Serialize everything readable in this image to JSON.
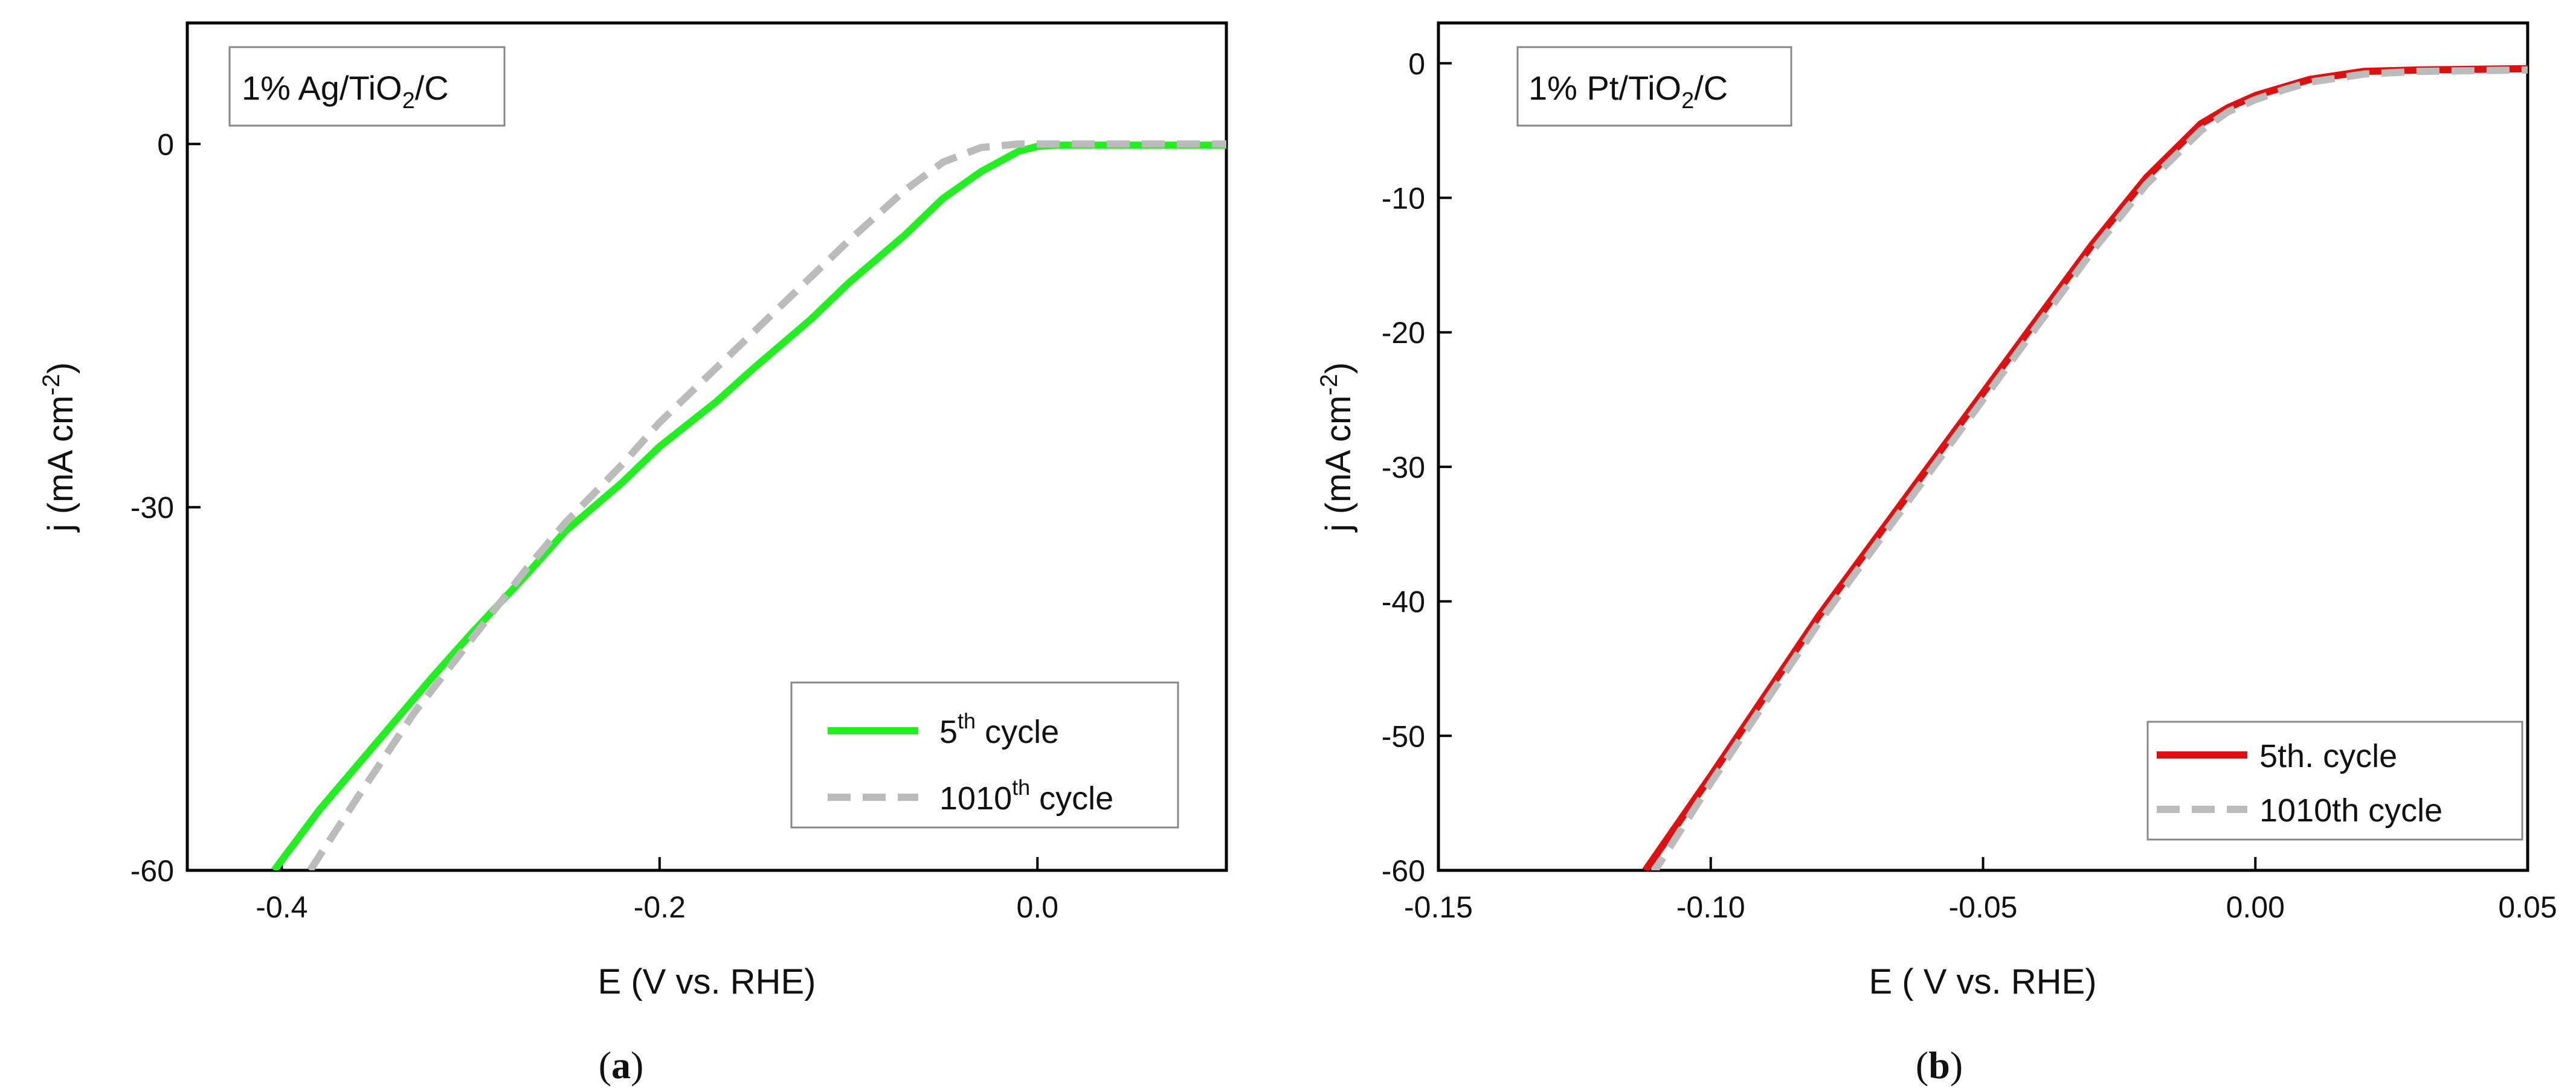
{
  "chart_data": [
    {
      "type": "line",
      "panel_label": "a",
      "annotation": {
        "prefix": "1% Ag/TiO",
        "sub1": "2",
        "suffix": "/C"
      },
      "xlabel": "E  (V vs. RHE)",
      "ylabel": {
        "base": "j (mA cm",
        "sup": "-2",
        "close": ")"
      },
      "xlim": [
        -0.45,
        0.1
      ],
      "ylim": [
        -60,
        10
      ],
      "xticks": [
        -0.4,
        -0.2,
        0.0
      ],
      "xtick_labels": [
        "-0.4",
        "-0.2",
        "0.0"
      ],
      "yticks": [
        -60,
        -30,
        0
      ],
      "ytick_labels": [
        "-60",
        "-30",
        "0"
      ],
      "legend_position": "lower-right",
      "series": [
        {
          "name": "5th cycle",
          "legend": {
            "base": "5",
            "sup": "th",
            "rest": " cycle"
          },
          "color": "#22ee22",
          "style": "solid",
          "x": [
            -0.404,
            -0.38,
            -0.35,
            -0.32,
            -0.3,
            -0.27,
            -0.25,
            -0.22,
            -0.2,
            -0.17,
            -0.15,
            -0.12,
            -0.1,
            -0.07,
            -0.05,
            -0.03,
            -0.01,
            0.0,
            0.01,
            0.05,
            0.1
          ],
          "y": [
            -60,
            -55,
            -49.5,
            -44,
            -40.5,
            -35.5,
            -32,
            -28,
            -25,
            -21.3,
            -18.5,
            -14.5,
            -11.5,
            -7.5,
            -4.5,
            -2.3,
            -0.6,
            -0.2,
            -0.1,
            -0.1,
            -0.1
          ]
        },
        {
          "name": "1010th cycle",
          "legend": {
            "base": "1010",
            "sup": "th",
            "rest": " cycle"
          },
          "color": "#bbbbbb",
          "style": "dashed",
          "x": [
            -0.385,
            -0.36,
            -0.33,
            -0.3,
            -0.27,
            -0.25,
            -0.22,
            -0.2,
            -0.17,
            -0.15,
            -0.12,
            -0.1,
            -0.07,
            -0.05,
            -0.03,
            -0.01,
            0.0,
            0.02,
            0.05,
            0.1
          ],
          "y": [
            -60,
            -54,
            -47,
            -41,
            -35,
            -31.3,
            -26.5,
            -23,
            -18.5,
            -15.5,
            -11,
            -8,
            -3.8,
            -1.5,
            -0.3,
            0,
            0,
            0,
            0,
            0
          ]
        }
      ]
    },
    {
      "type": "line",
      "panel_label": "b",
      "annotation": {
        "prefix": "1% Pt/TiO",
        "sub1": "2",
        "suffix": "/C"
      },
      "xlabel": "E ( V vs. RHE)",
      "ylabel": {
        "base": "j (mA cm",
        "sup": "-2",
        "close": ")"
      },
      "xlim": [
        -0.15,
        0.05
      ],
      "ylim": [
        -60,
        3
      ],
      "xticks": [
        -0.15,
        -0.1,
        -0.05,
        0.0,
        0.05
      ],
      "xtick_labels": [
        "-0.15",
        "-0.10",
        "-0.05",
        "0.00",
        "0.05"
      ],
      "yticks": [
        -60,
        -50,
        -40,
        -30,
        -20,
        -10,
        0
      ],
      "ytick_labels": [
        "-60",
        "-50",
        "-40",
        "-30",
        "-20",
        "-10",
        "0"
      ],
      "legend_position": "lower-right",
      "series": [
        {
          "name": "5th. cycle",
          "legend": {
            "base": "5th. cycle",
            "sup": "",
            "rest": ""
          },
          "color": "#dd1111",
          "style": "solid",
          "x": [
            -0.112,
            -0.1,
            -0.09,
            -0.08,
            -0.07,
            -0.06,
            -0.05,
            -0.04,
            -0.03,
            -0.02,
            -0.01,
            -0.005,
            0.0,
            0.005,
            0.01,
            0.02,
            0.03,
            0.05
          ],
          "y": [
            -60,
            -53,
            -47,
            -41,
            -35.5,
            -30,
            -24.5,
            -19,
            -13.5,
            -8.5,
            -4.5,
            -3.3,
            -2.4,
            -1.8,
            -1.2,
            -0.6,
            -0.5,
            -0.4
          ]
        },
        {
          "name": "1010th cycle",
          "legend": {
            "base": "1010th cycle",
            "sup": "",
            "rest": ""
          },
          "color": "#bbbbbb",
          "style": "dashed",
          "x": [
            -0.111,
            -0.1,
            -0.09,
            -0.08,
            -0.07,
            -0.06,
            -0.05,
            -0.04,
            -0.03,
            -0.02,
            -0.01,
            -0.005,
            0.0,
            0.005,
            0.01,
            0.02,
            0.03,
            0.05
          ],
          "y": [
            -60.5,
            -53.5,
            -47.5,
            -41.5,
            -36,
            -30.5,
            -25,
            -19.5,
            -14,
            -9,
            -5,
            -3.6,
            -2.7,
            -2.0,
            -1.4,
            -0.8,
            -0.6,
            -0.5
          ]
        }
      ]
    }
  ]
}
